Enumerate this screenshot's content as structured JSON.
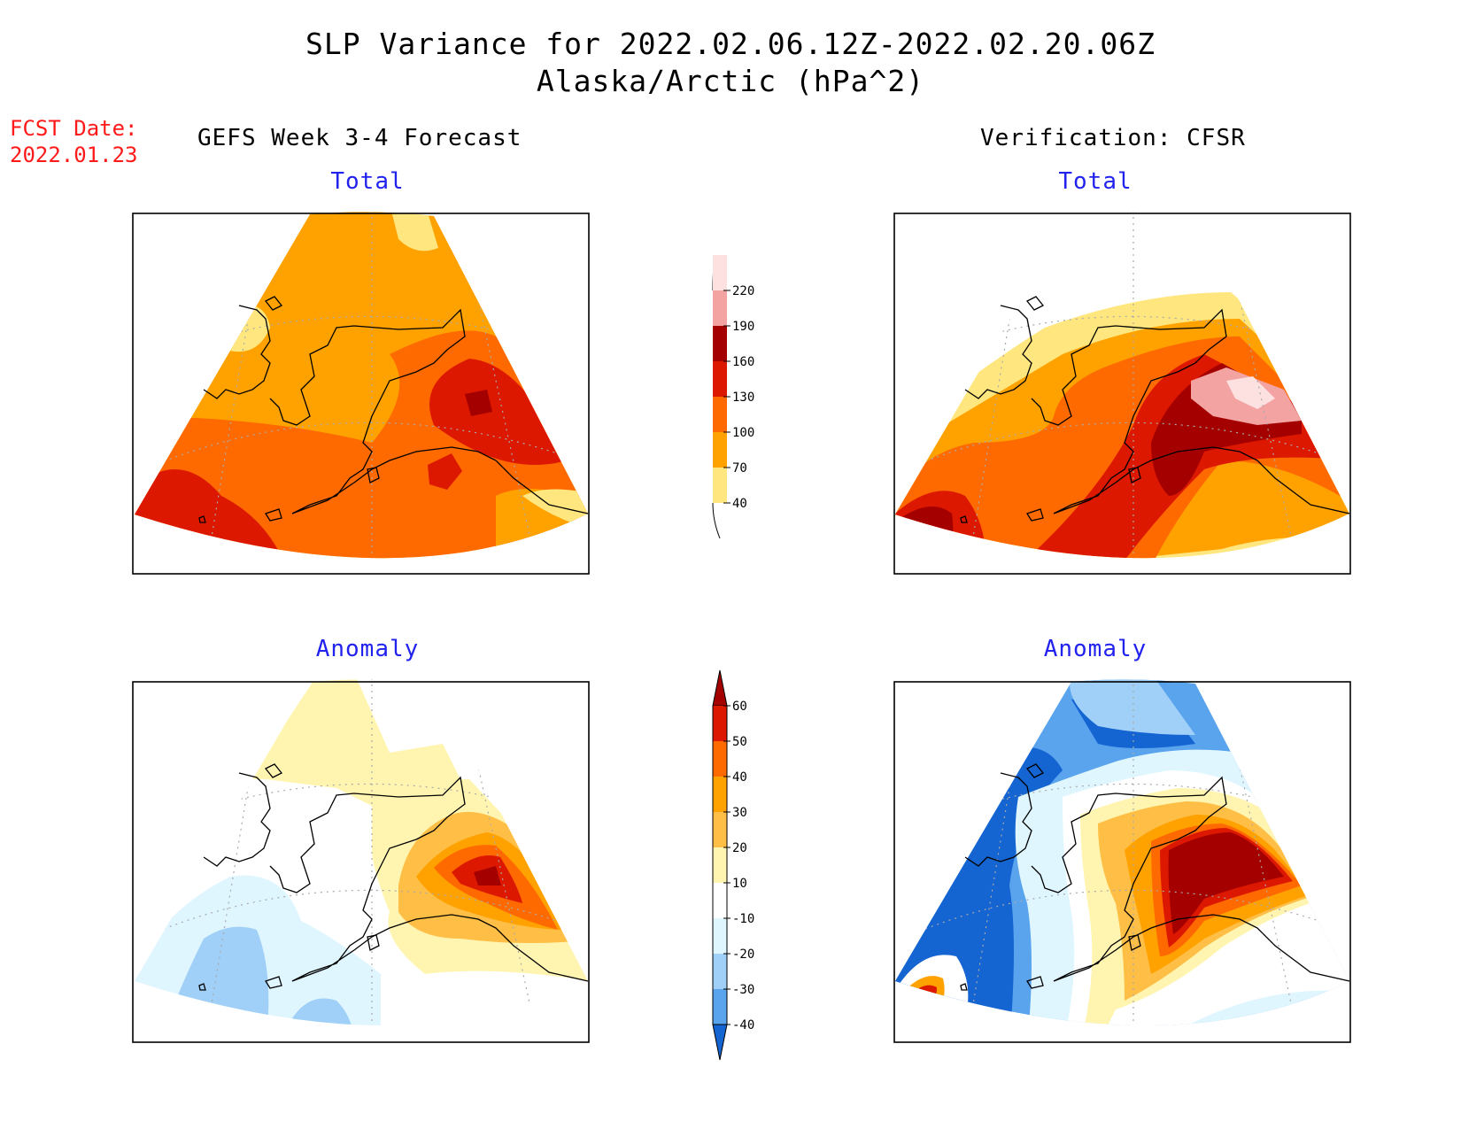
{
  "header": {
    "title": "SLP Variance for 2022.02.06.12Z-2022.02.20.06Z",
    "subtitle": "Alaska/Arctic (hPa^2)"
  },
  "fcst_date": {
    "label": "FCST Date:",
    "value": "2022.01.23"
  },
  "columns": {
    "left": "GEFS Week 3-4 Forecast",
    "right": "Verification: CFSR"
  },
  "panels": {
    "top_left_title": "Total",
    "top_right_title": "Total",
    "bottom_left_title": "Anomaly",
    "bottom_right_title": "Anomaly"
  },
  "legend_total": {
    "levels": [
      "220",
      "190",
      "160",
      "130",
      "100",
      "70",
      "40"
    ],
    "colors": [
      "#fde0e0",
      "#f4a3a3",
      "#a50000",
      "#dd1800",
      "#ff6a00",
      "#ffa200",
      "#ffe67e"
    ]
  },
  "legend_anomaly": {
    "levels": [
      "60",
      "50",
      "40",
      "30",
      "20",
      "10",
      "-10",
      "-20",
      "-30",
      "-40"
    ],
    "colors": [
      "#a50000",
      "#dd1800",
      "#ff6a00",
      "#ffa200",
      "#ffbe45",
      "#fff5b0",
      "#ffffff",
      "#dff6ff",
      "#a0d0f8",
      "#5aa4ee",
      "#1464d2"
    ]
  },
  "colors": {
    "fcst_date": "#ff1a1a",
    "panel_title": "#2222ee",
    "coastline": "#000000",
    "grid": "#aaaaaa"
  }
}
